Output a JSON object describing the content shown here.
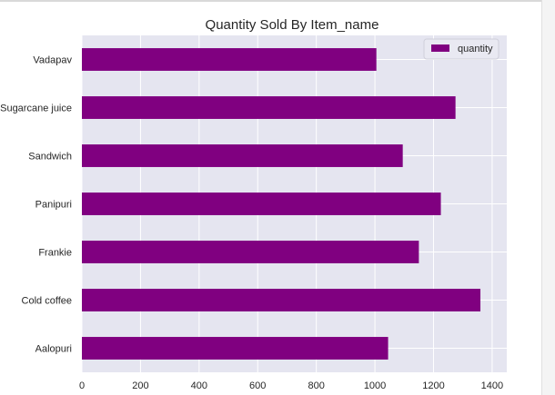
{
  "chart_data": {
    "type": "bar",
    "orientation": "horizontal",
    "title": "Quantity Sold By Item_name",
    "xlabel": "",
    "ylabel": "",
    "categories": [
      "Aalopuri",
      "Cold coffee",
      "Frankie",
      "Panipuri",
      "Sandwich",
      "Sugarcane juice",
      "Vadapav"
    ],
    "series": [
      {
        "name": "quantity",
        "values": [
          1045,
          1360,
          1150,
          1225,
          1095,
          1275,
          1005
        ]
      }
    ],
    "xlim": [
      0,
      1450
    ],
    "xticks": [
      0,
      200,
      400,
      600,
      800,
      1000,
      1200,
      1400
    ],
    "grid": true,
    "legend_position": "top-right",
    "colors": {
      "bar": "#800080",
      "plot_background": "#e5e5f0",
      "grid": "#ffffff"
    }
  }
}
